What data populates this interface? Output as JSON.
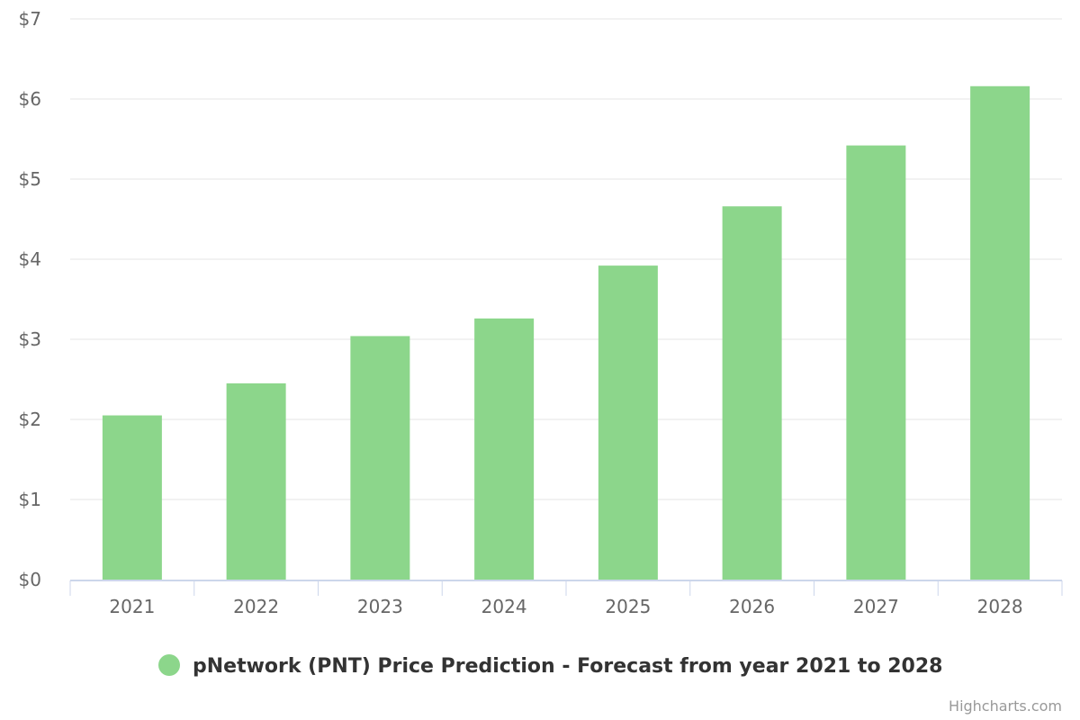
{
  "chart_data": {
    "type": "bar",
    "categories": [
      "2021",
      "2022",
      "2023",
      "2024",
      "2025",
      "2026",
      "2027",
      "2028"
    ],
    "series": [
      {
        "name": "pNetwork (PNT) Price Prediction - Forecast from year 2021 to 2028",
        "values": [
          2.05,
          2.45,
          3.04,
          3.26,
          3.92,
          4.66,
          5.42,
          6.16
        ],
        "color": "#8cd68b"
      }
    ],
    "y_ticks": [
      "$0",
      "$1",
      "$2",
      "$3",
      "$4",
      "$5",
      "$6",
      "$7"
    ],
    "ylim": [
      0,
      7
    ],
    "grid": true,
    "legend_position": "bottom-center",
    "title": "",
    "xlabel": "",
    "ylabel": ""
  },
  "legend": {
    "label": "pNetwork (PNT) Price Prediction - Forecast from year 2021 to 2028"
  },
  "credits": {
    "text": "Highcharts.com"
  },
  "colors": {
    "bar": "#8cd68b",
    "grid": "#e6e6e6",
    "axis": "#ccd6eb"
  }
}
